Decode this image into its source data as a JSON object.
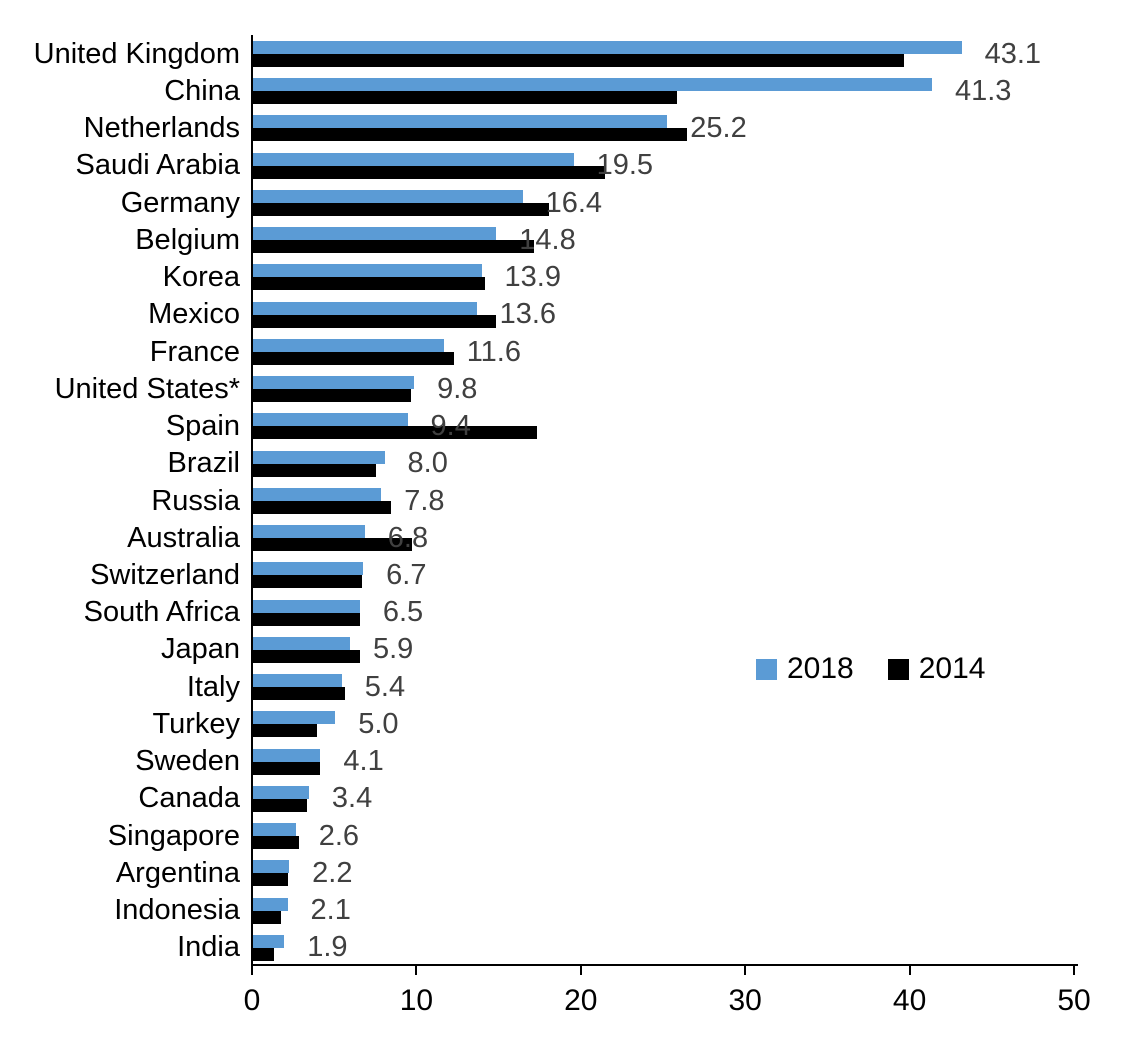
{
  "chart_data": {
    "type": "bar",
    "orientation": "horizontal",
    "title": "",
    "xlabel": "",
    "ylabel": "",
    "xlim": [
      0,
      50
    ],
    "x_ticks": [
      "0",
      "10",
      "20",
      "30",
      "40",
      "50"
    ],
    "grid": false,
    "legend_position": "middle-right",
    "categories": [
      "United Kingdom",
      "China",
      "Netherlands",
      "Saudi Arabia",
      "Germany",
      "Belgium",
      "Korea",
      "Mexico",
      "France",
      "United States*",
      "Spain",
      "Brazil",
      "Russia",
      "Australia",
      "Switzerland",
      "South Africa",
      "Japan",
      "Italy",
      "Turkey",
      "Sweden",
      "Canada",
      "Singapore",
      "Argentina",
      "Indonesia",
      "India"
    ],
    "series": [
      {
        "name": "2018",
        "color": "#5B9BD5",
        "values": [
          43.1,
          41.3,
          25.2,
          19.5,
          16.4,
          14.8,
          13.9,
          13.6,
          11.6,
          9.8,
          9.4,
          8.0,
          7.8,
          6.8,
          6.7,
          6.5,
          5.9,
          5.4,
          5.0,
          4.1,
          3.4,
          2.6,
          2.2,
          2.1,
          1.9
        ]
      },
      {
        "name": "2014",
        "color": "#000000",
        "values": [
          39.6,
          25.8,
          26.4,
          21.4,
          18.0,
          17.1,
          14.1,
          14.8,
          12.2,
          9.6,
          17.3,
          7.5,
          8.4,
          9.7,
          6.6,
          6.5,
          6.5,
          5.6,
          3.9,
          4.1,
          3.3,
          2.8,
          2.1,
          1.7,
          1.3
        ]
      }
    ],
    "data_labels": [
      "43.1",
      "41.3",
      "25.2",
      "19.5",
      "16.4",
      "14.8",
      "13.9",
      "13.6",
      "11.6",
      "9.8",
      "9.4",
      "8.0",
      "7.8",
      "6.8",
      "6.7",
      "6.5",
      "5.9",
      "5.4",
      "5.0",
      "4.1",
      "3.4",
      "2.6",
      "2.2",
      "2.1",
      "1.9"
    ],
    "data_label_color": "#404040",
    "axis_color": "#000000"
  },
  "legend": {
    "items": [
      {
        "label": "2018",
        "color": "#5B9BD5"
      },
      {
        "label": "2014",
        "color": "#000000"
      }
    ]
  }
}
